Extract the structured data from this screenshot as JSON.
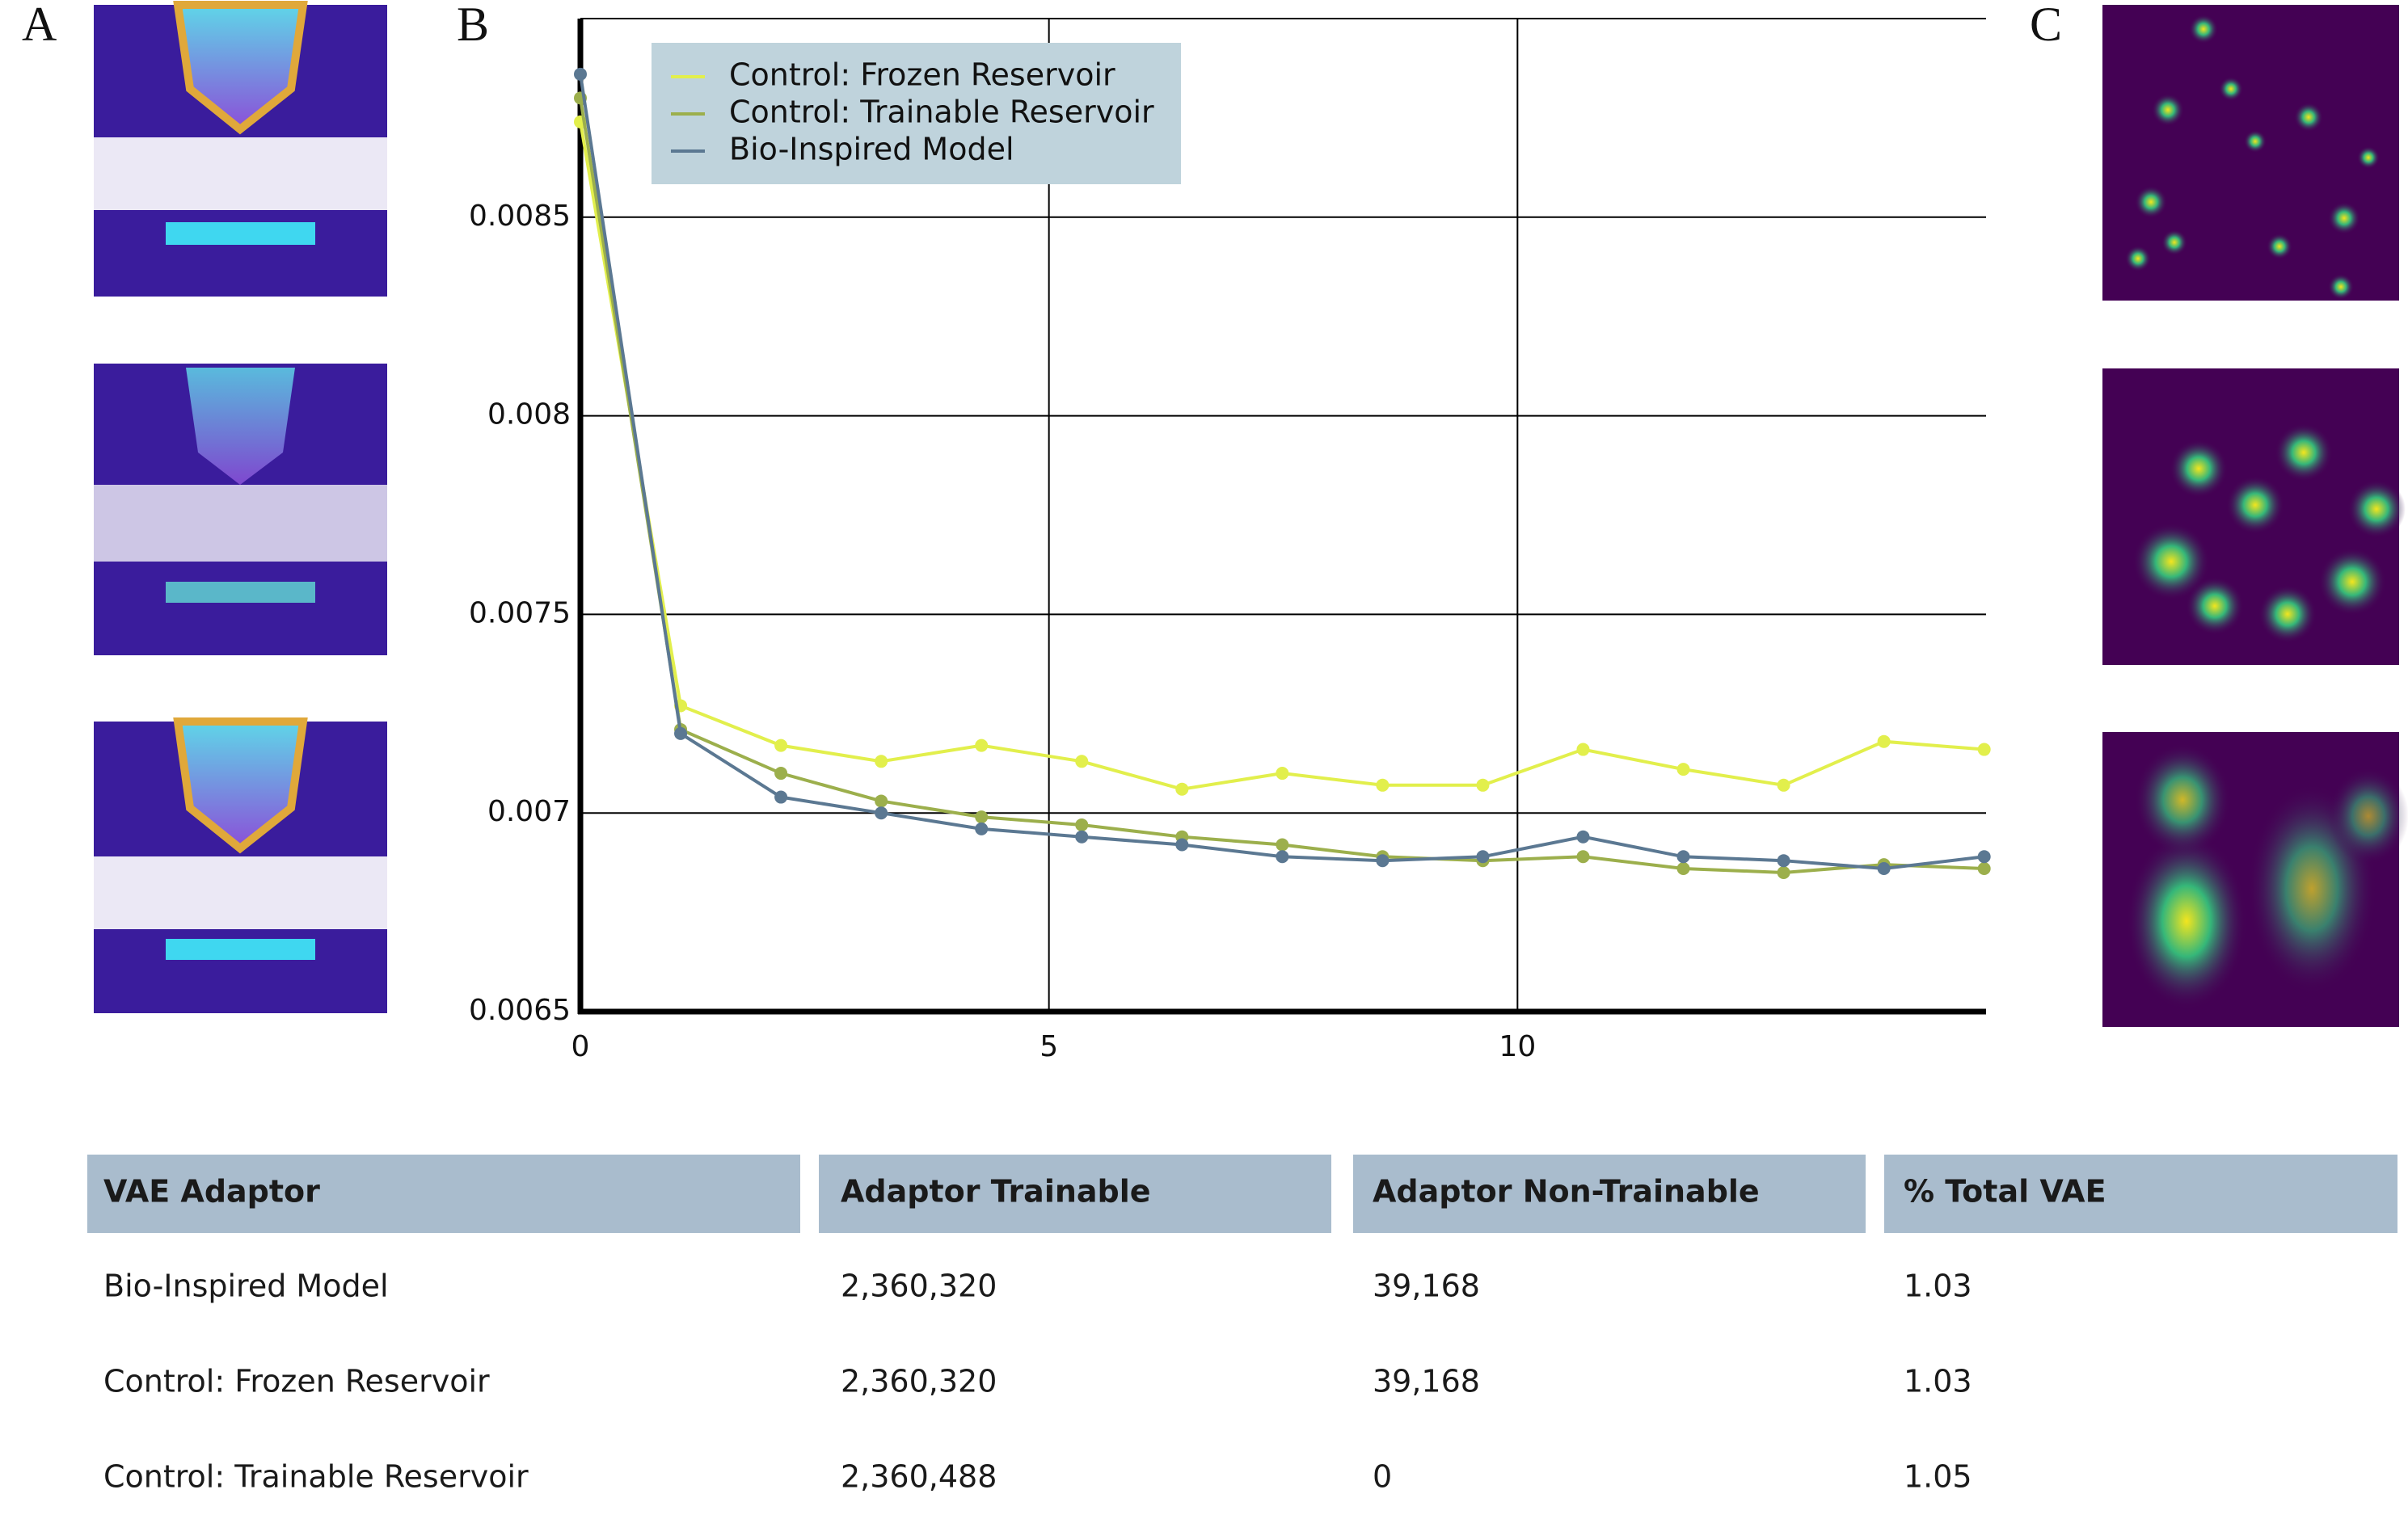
{
  "panels": {
    "a": "A",
    "b": "B",
    "c": "C"
  },
  "chart_data": {
    "type": "line",
    "x": [
      0,
      1.07,
      2.14,
      3.21,
      4.28,
      5.35,
      6.42,
      7.49,
      8.56,
      9.63,
      10.7,
      11.77,
      12.84,
      13.91,
      14.98
    ],
    "series": [
      {
        "name": "Control:  Frozen Reservoir",
        "color": "#e2ef4c",
        "values": [
          0.00874,
          0.00727,
          0.00717,
          0.00713,
          0.00717,
          0.00713,
          0.00706,
          0.0071,
          0.00707,
          0.00707,
          0.00716,
          0.00711,
          0.00707,
          0.00718,
          0.00716
        ]
      },
      {
        "name": "Control: Trainable Reservoir",
        "color": "#9caf4c",
        "values": [
          0.0088,
          0.00721,
          0.0071,
          0.00703,
          0.00699,
          0.00697,
          0.00694,
          0.00692,
          0.00689,
          0.00688,
          0.00689,
          0.00686,
          0.00685,
          0.00687,
          0.00686
        ]
      },
      {
        "name": "Bio-Inspired Model",
        "color": "#5b7892",
        "values": [
          0.00886,
          0.0072,
          0.00704,
          0.007,
          0.00696,
          0.00694,
          0.00692,
          0.00689,
          0.00688,
          0.00689,
          0.00694,
          0.00689,
          0.00688,
          0.00686,
          0.00689
        ]
      }
    ],
    "xlim": [
      0,
      15
    ],
    "xticks": [
      0,
      5,
      10
    ],
    "ylim": [
      0.0065,
      0.009
    ],
    "yticks": [
      0.0065,
      0.007,
      0.0075,
      0.008,
      0.0085
    ],
    "grid": true,
    "legend": "upper left"
  },
  "table": {
    "header": [
      "VAE Adaptor",
      "Adaptor Trainable",
      "Adaptor Non-Trainable",
      "% Total VAE"
    ],
    "rows": [
      [
        "Bio-Inspired Model",
        "2,360,320",
        "39,168",
        "1.03"
      ],
      [
        "Control: Frozen Reservoir",
        "2,360,320",
        "39,168",
        "1.03"
      ],
      [
        "Control: Trainable Reservoir",
        "2,360,488",
        "0",
        "1.05"
      ]
    ]
  }
}
